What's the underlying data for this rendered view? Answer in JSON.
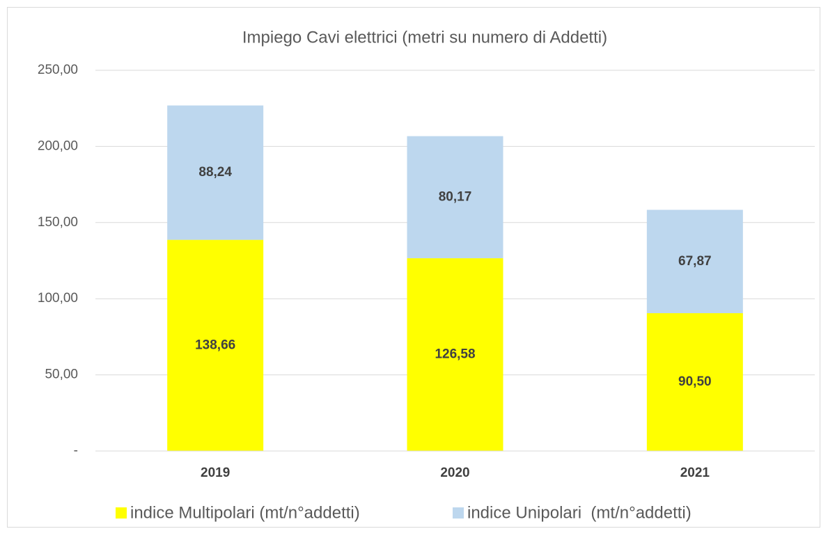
{
  "chart_data": {
    "type": "stacked_bar",
    "title": "Impiego Cavi elettrici (metri su numero di Addetti)",
    "categories": [
      "2019",
      "2020",
      "2021"
    ],
    "series": [
      {
        "name": "indice Multipolari (mt/n°addetti)",
        "color": "#ffff00",
        "values": [
          138.66,
          126.58,
          90.5
        ],
        "value_labels": [
          "138,66",
          "126,58",
          "90,50"
        ]
      },
      {
        "name": "indice Unipolari  (mt/n°addetti)",
        "color": "#bdd7ee",
        "values": [
          88.24,
          80.17,
          67.87
        ],
        "value_labels": [
          "88,24",
          "80,17",
          "67,87"
        ]
      }
    ],
    "ylim": [
      0,
      250
    ],
    "yticks": [
      {
        "value": 0,
        "label": "-"
      },
      {
        "value": 50,
        "label": "50,00"
      },
      {
        "value": 100,
        "label": "100,00"
      },
      {
        "value": 150,
        "label": "150,00"
      },
      {
        "value": 200,
        "label": "200,00"
      },
      {
        "value": 250,
        "label": "250,00"
      }
    ],
    "grid": true,
    "legend": "bottom"
  }
}
